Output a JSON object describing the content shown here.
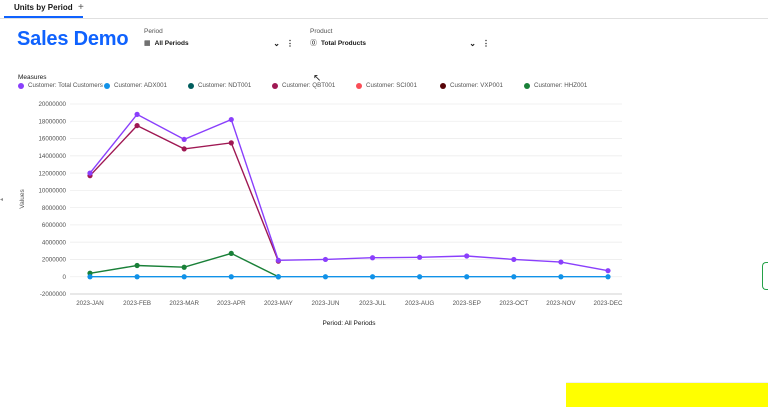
{
  "tabs": {
    "active": "Units by Period",
    "add_label": "+"
  },
  "header": {
    "title": "Sales Demo"
  },
  "filters": {
    "period": {
      "label": "Period",
      "value": "All Periods"
    },
    "product": {
      "label": "Product",
      "value": "Total Products"
    }
  },
  "measures_title": "Measures",
  "colors": {
    "accent": "#0f62fe",
    "total": "#8a3ffc",
    "adx": "#1192e8",
    "ndt": "#005d5d",
    "qbt": "#9f1853",
    "sci": "#fa4d56",
    "vxp": "#570408",
    "hhz": "#198038"
  },
  "icons": {
    "period": "calendar-grid-icon",
    "product": "product-badge-icon",
    "chevron": "chevron-down-icon",
    "kebab": "overflow-menu-icon"
  },
  "chart_data": {
    "type": "line",
    "categories": [
      "2023-JAN",
      "2023-FEB",
      "2023-MAR",
      "2023-APR",
      "2023-MAY",
      "2023-JUN",
      "2023-JUL",
      "2023-AUG",
      "2023-SEP",
      "2023-OCT",
      "2023-NOV",
      "2023-DEC"
    ],
    "ylabel": "Values",
    "xlabel": "Period: All Periods",
    "ylim": [
      -2000000,
      20000000
    ],
    "yticks": [
      "20000000",
      "18000000",
      "16000000",
      "14000000",
      "12000000",
      "10000000",
      "8000000",
      "6000000",
      "4000000",
      "2000000",
      "0",
      "-2000000"
    ],
    "ytick_values": [
      20000000,
      18000000,
      16000000,
      14000000,
      12000000,
      10000000,
      8000000,
      6000000,
      4000000,
      2000000,
      0,
      -2000000
    ],
    "grid": true,
    "legend_position": "top-left",
    "series": [
      {
        "name": "Customer: Total Customers",
        "color": "#8a3ffc",
        "values": [
          12000000,
          18800000,
          15900000,
          18200000,
          1900000,
          2000000,
          2200000,
          2250000,
          2400000,
          2000000,
          1700000,
          700000
        ]
      },
      {
        "name": "Customer: ADX001",
        "color": "#1192e8",
        "values": [
          0,
          0,
          0,
          0,
          0,
          0,
          0,
          0,
          0,
          0,
          0,
          0
        ]
      },
      {
        "name": "Customer: NDT001",
        "color": "#005d5d",
        "values": [
          null,
          null,
          null,
          null,
          null,
          null,
          null,
          null,
          null,
          null,
          null,
          null
        ]
      },
      {
        "name": "Customer: QBT001",
        "color": "#9f1853",
        "values": [
          11700000,
          17500000,
          14800000,
          15500000,
          1800000,
          null,
          null,
          null,
          null,
          null,
          null,
          null
        ]
      },
      {
        "name": "Customer: SCI001",
        "color": "#fa4d56",
        "values": [
          null,
          null,
          null,
          null,
          null,
          null,
          null,
          null,
          null,
          null,
          null,
          null
        ]
      },
      {
        "name": "Customer: VXP001",
        "color": "#570408",
        "values": [
          null,
          null,
          null,
          null,
          null,
          null,
          null,
          null,
          null,
          null,
          null,
          null
        ]
      },
      {
        "name": "Customer: HHZ001",
        "color": "#198038",
        "values": [
          400000,
          1300000,
          1100000,
          2700000,
          0,
          null,
          null,
          null,
          null,
          null,
          null,
          null
        ]
      }
    ]
  }
}
